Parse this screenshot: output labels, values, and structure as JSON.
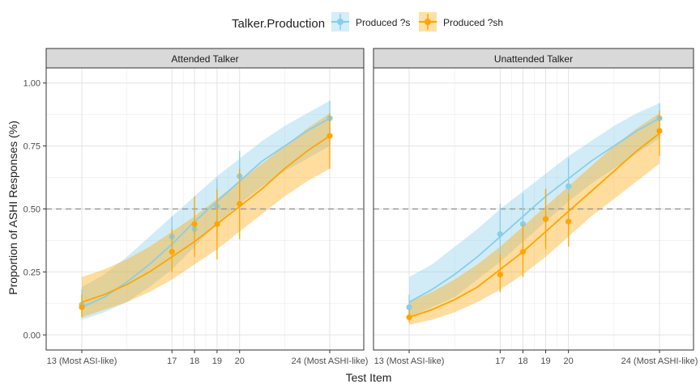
{
  "legend": {
    "title": "Talker.Production",
    "items": [
      {
        "label": "Produced ?s",
        "color": "#87CEEB"
      },
      {
        "label": "Produced ?sh",
        "color": "#FFA500"
      }
    ]
  },
  "ref_line": 0.5,
  "chart_data": {
    "type": "line",
    "xlabel": "Test Item",
    "ylabel": "Proportion of ASHI Responses (%)",
    "xlim": [
      13,
      24
    ],
    "ylim": [
      0,
      1
    ],
    "x_ticks": [
      {
        "value": 13,
        "label": "13 (Most ASI-like)"
      },
      {
        "value": 17,
        "label": "17"
      },
      {
        "value": 18,
        "label": "18"
      },
      {
        "value": 19,
        "label": "19"
      },
      {
        "value": 20,
        "label": "20"
      },
      {
        "value": 24,
        "label": "24 (Most ASHI-like)"
      }
    ],
    "y_ticks": [
      {
        "value": 0,
        "label": "0.00"
      },
      {
        "value": 0.25,
        "label": "0.25"
      },
      {
        "value": 0.5,
        "label": "0.50"
      },
      {
        "value": 0.75,
        "label": "0.75"
      },
      {
        "value": 1,
        "label": "1.00"
      }
    ],
    "grid": true,
    "legend_position": "top",
    "panels": [
      {
        "title": "Attended Talker",
        "series": [
          {
            "name": "Produced ?s",
            "color": "#87CEEB",
            "points": [
              {
                "x": 13,
                "y": 0.12,
                "lo": 0.07,
                "hi": 0.18
              },
              {
                "x": 17,
                "y": 0.39,
                "lo": 0.32,
                "hi": 0.47
              },
              {
                "x": 18,
                "y": 0.42,
                "lo": 0.35,
                "hi": 0.5
              },
              {
                "x": 19,
                "y": 0.51,
                "lo": 0.4,
                "hi": 0.62
              },
              {
                "x": 20,
                "y": 0.63,
                "lo": 0.53,
                "hi": 0.73
              },
              {
                "x": 24,
                "y": 0.86,
                "lo": 0.76,
                "hi": 0.93
              }
            ],
            "fit": [
              {
                "x": 13,
                "y": 0.11,
                "lo": 0.06,
                "hi": 0.19
              },
              {
                "x": 14,
                "y": 0.15,
                "lo": 0.09,
                "hi": 0.24
              },
              {
                "x": 15,
                "y": 0.21,
                "lo": 0.13,
                "hi": 0.31
              },
              {
                "x": 16,
                "y": 0.28,
                "lo": 0.19,
                "hi": 0.39
              },
              {
                "x": 17,
                "y": 0.36,
                "lo": 0.26,
                "hi": 0.47
              },
              {
                "x": 18,
                "y": 0.45,
                "lo": 0.35,
                "hi": 0.55
              },
              {
                "x": 19,
                "y": 0.53,
                "lo": 0.44,
                "hi": 0.63
              },
              {
                "x": 20,
                "y": 0.61,
                "lo": 0.52,
                "hi": 0.7
              },
              {
                "x": 21,
                "y": 0.69,
                "lo": 0.59,
                "hi": 0.77
              },
              {
                "x": 22,
                "y": 0.75,
                "lo": 0.65,
                "hi": 0.83
              },
              {
                "x": 23,
                "y": 0.81,
                "lo": 0.7,
                "hi": 0.88
              },
              {
                "x": 24,
                "y": 0.86,
                "lo": 0.75,
                "hi": 0.93
              }
            ]
          },
          {
            "name": "Produced ?sh",
            "color": "#FFA500",
            "points": [
              {
                "x": 13,
                "y": 0.11,
                "lo": 0.07,
                "hi": 0.16
              },
              {
                "x": 17,
                "y": 0.33,
                "lo": 0.25,
                "hi": 0.42
              },
              {
                "x": 18,
                "y": 0.44,
                "lo": 0.31,
                "hi": 0.55
              },
              {
                "x": 19,
                "y": 0.44,
                "lo": 0.3,
                "hi": 0.58
              },
              {
                "x": 20,
                "y": 0.52,
                "lo": 0.38,
                "hi": 0.66
              },
              {
                "x": 24,
                "y": 0.79,
                "lo": 0.66,
                "hi": 0.88
              }
            ],
            "fit": [
              {
                "x": 13,
                "y": 0.13,
                "lo": 0.07,
                "hi": 0.23
              },
              {
                "x": 14,
                "y": 0.16,
                "lo": 0.1,
                "hi": 0.26
              },
              {
                "x": 15,
                "y": 0.2,
                "lo": 0.13,
                "hi": 0.3
              },
              {
                "x": 16,
                "y": 0.25,
                "lo": 0.17,
                "hi": 0.35
              },
              {
                "x": 17,
                "y": 0.31,
                "lo": 0.22,
                "hi": 0.41
              },
              {
                "x": 18,
                "y": 0.37,
                "lo": 0.28,
                "hi": 0.47
              },
              {
                "x": 19,
                "y": 0.44,
                "lo": 0.34,
                "hi": 0.54
              },
              {
                "x": 20,
                "y": 0.51,
                "lo": 0.41,
                "hi": 0.61
              },
              {
                "x": 21,
                "y": 0.58,
                "lo": 0.48,
                "hi": 0.68
              },
              {
                "x": 22,
                "y": 0.66,
                "lo": 0.55,
                "hi": 0.75
              },
              {
                "x": 23,
                "y": 0.73,
                "lo": 0.61,
                "hi": 0.82
              },
              {
                "x": 24,
                "y": 0.79,
                "lo": 0.66,
                "hi": 0.88
              }
            ]
          }
        ]
      },
      {
        "title": "Unattended Talker",
        "series": [
          {
            "name": "Produced ?s",
            "color": "#87CEEB",
            "points": [
              {
                "x": 13,
                "y": 0.11,
                "lo": 0.07,
                "hi": 0.16
              },
              {
                "x": 17,
                "y": 0.4,
                "lo": 0.28,
                "hi": 0.52
              },
              {
                "x": 18,
                "y": 0.44,
                "lo": 0.33,
                "hi": 0.56
              },
              {
                "x": 19,
                "y": 0.46,
                "lo": 0.35,
                "hi": 0.58
              },
              {
                "x": 20,
                "y": 0.59,
                "lo": 0.47,
                "hi": 0.7
              },
              {
                "x": 24,
                "y": 0.86,
                "lo": 0.78,
                "hi": 0.92
              }
            ],
            "fit": [
              {
                "x": 13,
                "y": 0.13,
                "lo": 0.07,
                "hi": 0.23
              },
              {
                "x": 14,
                "y": 0.18,
                "lo": 0.11,
                "hi": 0.28
              },
              {
                "x": 15,
                "y": 0.24,
                "lo": 0.15,
                "hi": 0.35
              },
              {
                "x": 16,
                "y": 0.31,
                "lo": 0.22,
                "hi": 0.42
              },
              {
                "x": 17,
                "y": 0.39,
                "lo": 0.29,
                "hi": 0.5
              },
              {
                "x": 18,
                "y": 0.47,
                "lo": 0.37,
                "hi": 0.57
              },
              {
                "x": 19,
                "y": 0.55,
                "lo": 0.45,
                "hi": 0.64
              },
              {
                "x": 20,
                "y": 0.62,
                "lo": 0.53,
                "hi": 0.71
              },
              {
                "x": 21,
                "y": 0.69,
                "lo": 0.6,
                "hi": 0.77
              },
              {
                "x": 22,
                "y": 0.75,
                "lo": 0.66,
                "hi": 0.83
              },
              {
                "x": 23,
                "y": 0.81,
                "lo": 0.72,
                "hi": 0.88
              },
              {
                "x": 24,
                "y": 0.86,
                "lo": 0.78,
                "hi": 0.92
              }
            ]
          },
          {
            "name": "Produced ?sh",
            "color": "#FFA500",
            "points": [
              {
                "x": 13,
                "y": 0.07,
                "lo": 0.05,
                "hi": 0.1
              },
              {
                "x": 17,
                "y": 0.24,
                "lo": 0.17,
                "hi": 0.32
              },
              {
                "x": 18,
                "y": 0.33,
                "lo": 0.23,
                "hi": 0.44
              },
              {
                "x": 19,
                "y": 0.46,
                "lo": 0.34,
                "hi": 0.58
              },
              {
                "x": 20,
                "y": 0.45,
                "lo": 0.35,
                "hi": 0.56
              },
              {
                "x": 24,
                "y": 0.81,
                "lo": 0.71,
                "hi": 0.89
              }
            ],
            "fit": [
              {
                "x": 13,
                "y": 0.07,
                "lo": 0.04,
                "hi": 0.13
              },
              {
                "x": 14,
                "y": 0.1,
                "lo": 0.06,
                "hi": 0.17
              },
              {
                "x": 15,
                "y": 0.14,
                "lo": 0.09,
                "hi": 0.22
              },
              {
                "x": 16,
                "y": 0.19,
                "lo": 0.13,
                "hi": 0.28
              },
              {
                "x": 17,
                "y": 0.26,
                "lo": 0.18,
                "hi": 0.35
              },
              {
                "x": 18,
                "y": 0.33,
                "lo": 0.24,
                "hi": 0.43
              },
              {
                "x": 19,
                "y": 0.41,
                "lo": 0.31,
                "hi": 0.51
              },
              {
                "x": 20,
                "y": 0.49,
                "lo": 0.39,
                "hi": 0.59
              },
              {
                "x": 21,
                "y": 0.57,
                "lo": 0.47,
                "hi": 0.67
              },
              {
                "x": 22,
                "y": 0.65,
                "lo": 0.54,
                "hi": 0.75
              },
              {
                "x": 23,
                "y": 0.73,
                "lo": 0.61,
                "hi": 0.82
              },
              {
                "x": 24,
                "y": 0.8,
                "lo": 0.68,
                "hi": 0.88
              }
            ]
          }
        ]
      }
    ]
  }
}
